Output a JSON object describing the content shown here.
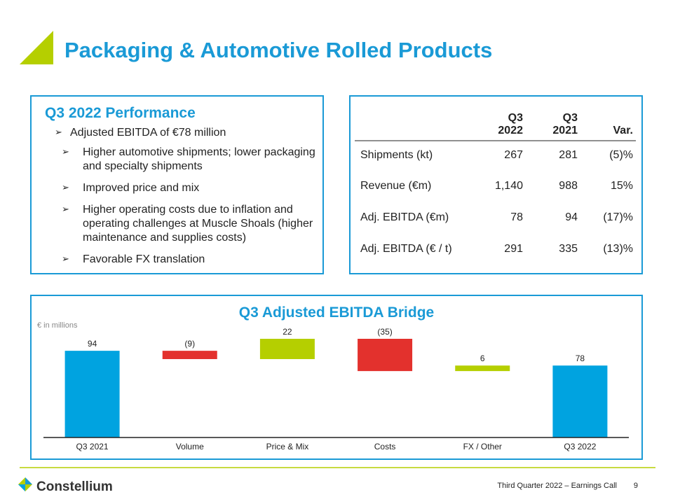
{
  "header": {
    "title": "Packaging & Automotive Rolled Products"
  },
  "performance": {
    "title": "Q3 2022 Performance",
    "items": [
      {
        "level": 1,
        "text": "Adjusted EBITDA of €78 million"
      },
      {
        "level": 2,
        "text": "Higher automotive shipments; lower packaging and specialty shipments"
      },
      {
        "level": 2,
        "text": "Improved price and mix"
      },
      {
        "level": 2,
        "text": "Higher operating costs due to inflation and operating challenges at Muscle Shoals (higher maintenance and supplies costs)"
      },
      {
        "level": 2,
        "text": "Favorable FX translation"
      }
    ]
  },
  "table": {
    "columns": [
      {
        "lines": [
          "Q3",
          "2022"
        ]
      },
      {
        "lines": [
          "Q3",
          "2021"
        ]
      },
      {
        "lines": [
          "Var."
        ]
      }
    ],
    "rows": [
      [
        "Shipments (kt)",
        "267",
        "281",
        "(5)%"
      ],
      [
        "Revenue (€m)",
        "1,140",
        "988",
        "15%"
      ],
      [
        "Adj. EBITDA (€m)",
        "78",
        "94",
        "(17)%"
      ],
      [
        "Adj. EBITDA (€ / t)",
        "291",
        "335",
        "(13)%"
      ]
    ]
  },
  "chart_data": {
    "type": "waterfall",
    "title": "Q3 Adjusted EBITDA Bridge",
    "note": "€ in millions",
    "categories": [
      "Q3 2021",
      "Volume",
      "Price & Mix",
      "Costs",
      "FX / Other",
      "Q3 2022"
    ],
    "values": [
      94,
      -9,
      22,
      -35,
      6,
      78
    ],
    "value_labels": [
      "94",
      "(9)",
      "22",
      "(35)",
      "6",
      "78"
    ],
    "colors": {
      "total": "#00a3e0",
      "increase": "#b5cf00",
      "decrease": "#e3312d"
    }
  },
  "footer": {
    "logo": "Constellium",
    "event": "Third Quarter 2022 – Earnings Call",
    "page": "9"
  }
}
